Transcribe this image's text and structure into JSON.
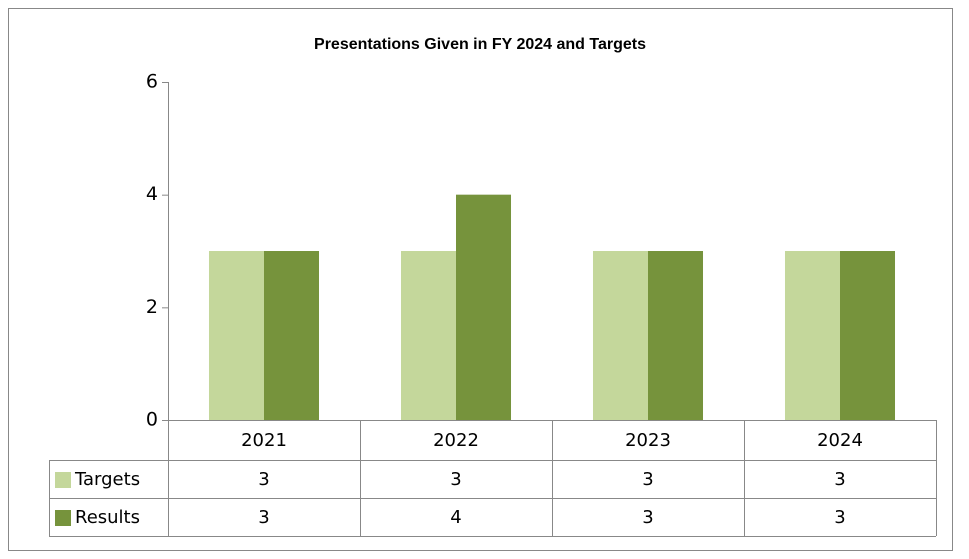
{
  "chart_data": {
    "type": "bar",
    "title": "Presentations Given in FY 2024 and Targets",
    "categories": [
      "2021",
      "2022",
      "2023",
      "2024"
    ],
    "series": [
      {
        "name": "Targets",
        "color": "#c4d79b",
        "values": [
          3,
          3,
          3,
          3
        ]
      },
      {
        "name": "Results",
        "color": "#76933c",
        "values": [
          3,
          4,
          3,
          3
        ]
      }
    ],
    "ylim": [
      0,
      6
    ],
    "yticks": [
      0,
      2,
      4,
      6
    ],
    "grid": false
  }
}
